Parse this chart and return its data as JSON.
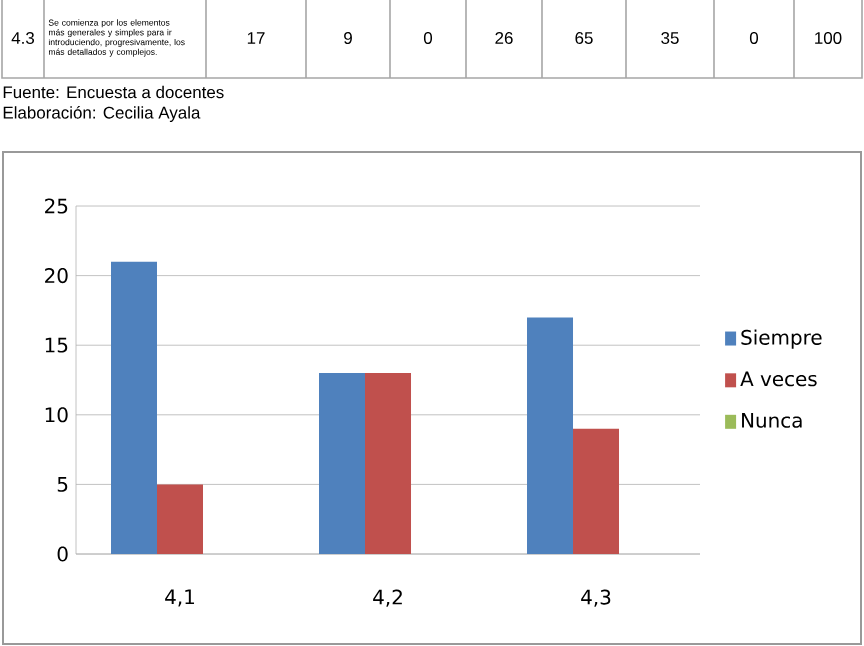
{
  "chart_data": {
    "type": "bar",
    "categories": [
      "4,1",
      "4,2",
      "4,3"
    ],
    "series": [
      {
        "name": "Siempre",
        "color": "#4f81bd",
        "values": [
          21,
          13,
          17
        ]
      },
      {
        "name": "A veces",
        "color": "#c0504d",
        "values": [
          5,
          13,
          9
        ]
      },
      {
        "name": "Nunca",
        "color": "#9bbb59",
        "values": [
          0,
          0,
          0
        ]
      }
    ],
    "ylim": [
      0,
      25
    ],
    "yticks": [
      0,
      5,
      10,
      15,
      20,
      25
    ],
    "grid": "y",
    "legend": "right",
    "annotations": [
      "4.3",
      "Se comienza por los elementos más generales y simples para ir introduciendo, progresivamente, los más detallados y complejos.",
      "17",
      "9",
      "0",
      "26",
      "65",
      "35",
      "0",
      "100",
      "Fuente: Encuesta a docentes",
      "Elaboración: Cecilia Ayala"
    ]
  }
}
